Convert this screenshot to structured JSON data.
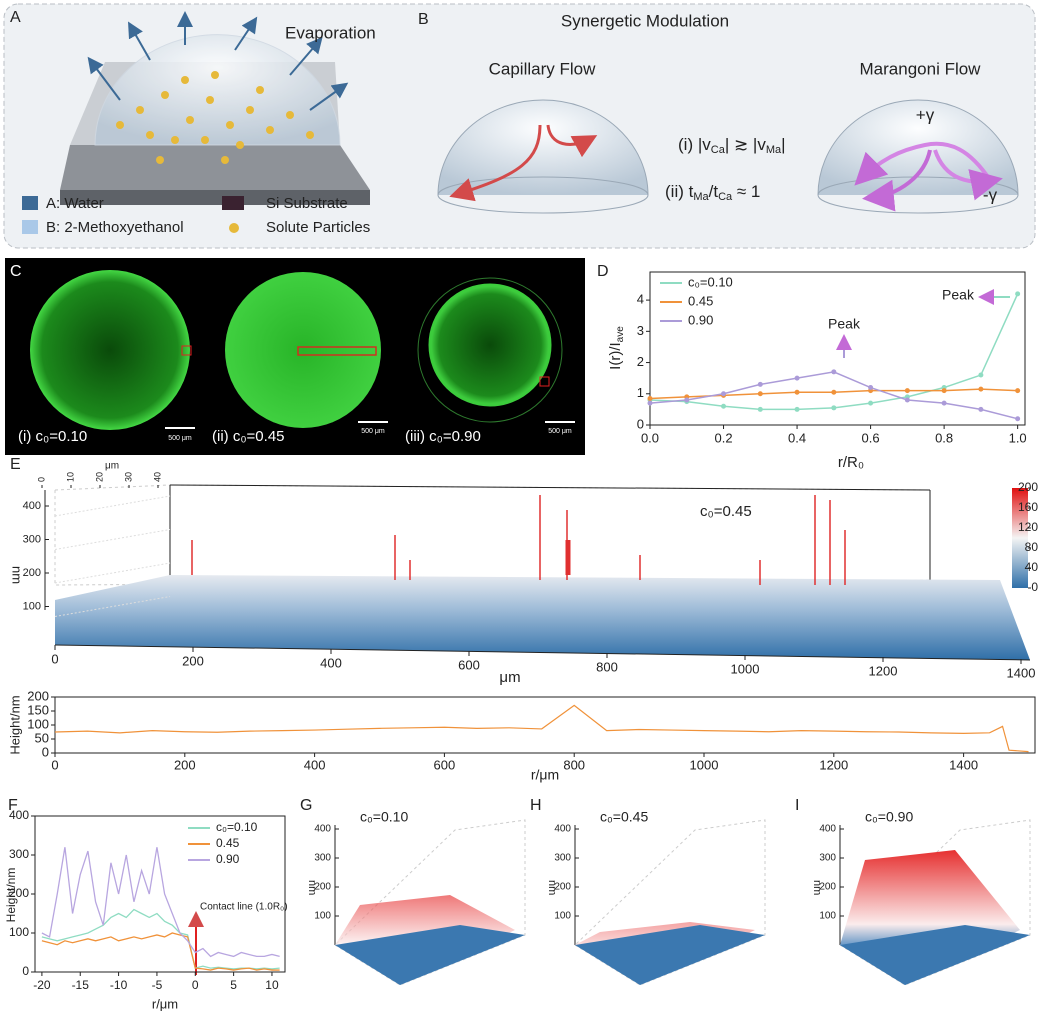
{
  "panels": {
    "A": {
      "label": "A",
      "evaporation": "Evaporation",
      "legend": [
        "A: Water",
        "B: 2-Methoxyethanol",
        "Si Substrate",
        "Solute Particles"
      ]
    },
    "B": {
      "label": "B",
      "title": "Synergetic Modulation",
      "capillary": "Capillary Flow",
      "marangoni": "Marangoni Flow",
      "cond1": [
        "(i) |v",
        "Ca",
        "| ≳ |v",
        "Ma",
        "|"
      ],
      "cond2": [
        "(ii) t",
        "Ma",
        "/t",
        "Ca",
        " ≈ 1"
      ],
      "gamma_plus": "+γ",
      "gamma_minus": "-γ"
    },
    "C": {
      "label": "C",
      "images": [
        {
          "caption": "(i) c₀=0.10",
          "scale": "500 μm"
        },
        {
          "caption": "(ii) c₀=0.45",
          "scale": "500 μm"
        },
        {
          "caption": "(iii) c₀=0.90",
          "scale": "500 μm"
        }
      ]
    },
    "D": {
      "label": "D",
      "annotations": [
        "Peak",
        "Peak"
      ],
      "chart_data": {
        "type": "line",
        "xlabel": "r/R₀",
        "ylabel": [
          "I(r)/I",
          "ave"
        ],
        "x": [
          0,
          0.1,
          0.2,
          0.3,
          0.4,
          0.5,
          0.6,
          0.7,
          0.8,
          0.9,
          1.0
        ],
        "xlim": [
          0,
          1.02
        ],
        "ylim": [
          0,
          4.9
        ],
        "xticks": [
          {
            "value": 0,
            "label": "0.0"
          },
          0.2,
          0.4,
          0.6,
          0.8,
          {
            "value": 1,
            "label": "1.0"
          }
        ],
        "yticks": [
          0,
          1,
          2,
          3,
          4
        ],
        "series": [
          {
            "name": "c₀=0.10",
            "color": "#8fdcc2",
            "values": [
              0.8,
              0.75,
              0.6,
              0.5,
              0.5,
              0.55,
              0.7,
              0.9,
              1.2,
              1.6,
              4.2
            ]
          },
          {
            "name": "0.45",
            "color": "#f0923a",
            "values": [
              0.85,
              0.9,
              0.95,
              1.0,
              1.05,
              1.05,
              1.1,
              1.1,
              1.1,
              1.15,
              1.1
            ]
          },
          {
            "name": "0.90",
            "color": "#ab9bd8",
            "values": [
              0.7,
              0.8,
              1.0,
              1.3,
              1.5,
              1.7,
              1.2,
              0.8,
              0.7,
              0.5,
              0.2
            ]
          }
        ]
      }
    },
    "E": {
      "label": "E",
      "surface": {
        "annotation": "c₀=0.45",
        "xlabel": "μm",
        "zlabel": "nm",
        "ylabel": "μm",
        "xticks": [
          0,
          200,
          400,
          600,
          800,
          1000,
          1200,
          1400
        ],
        "zticks": [
          100,
          200,
          300,
          400
        ],
        "yticks": [
          0,
          10,
          20,
          30,
          40
        ],
        "colorbar_ticks": [
          0,
          40,
          80,
          120,
          160,
          200
        ]
      },
      "chart_data": {
        "type": "line",
        "xlabel": "r/μm",
        "ylabel": "Height/nm",
        "x": [
          0,
          50,
          100,
          150,
          200,
          250,
          300,
          350,
          400,
          450,
          500,
          550,
          600,
          650,
          700,
          750,
          800,
          850,
          900,
          950,
          1000,
          1050,
          1100,
          1150,
          1200,
          1250,
          1300,
          1350,
          1400,
          1440,
          1460,
          1470,
          1500
        ],
        "xlim": [
          0,
          1510
        ],
        "ylim": [
          0,
          200
        ],
        "xticks": [
          0,
          200,
          400,
          600,
          800,
          1000,
          1200,
          1400
        ],
        "yticks": [
          0,
          50,
          100,
          150,
          200
        ],
        "series": [
          {
            "name": "Height",
            "color": "#f0923a",
            "values": [
              75,
              78,
              72,
              80,
              76,
              74,
              78,
              80,
              82,
              85,
              88,
              90,
              92,
              88,
              90,
              86,
              170,
              80,
              84,
              82,
              80,
              78,
              76,
              80,
              78,
              76,
              75,
              72,
              70,
              72,
              95,
              10,
              5
            ]
          }
        ]
      }
    },
    "F": {
      "label": "F",
      "annotation": "Contact line (1.0R₀)",
      "chart_data": {
        "type": "line",
        "xlabel": "r/μm",
        "ylabel": "Height/nm",
        "x": [
          -20,
          -19,
          -18,
          -17,
          -16,
          -15,
          -14,
          -13,
          -12,
          -11,
          -10,
          -9,
          -8,
          -7,
          -6,
          -5,
          -4,
          -3,
          -2,
          -1,
          0,
          1,
          2,
          3,
          4,
          5,
          6,
          7,
          8,
          9,
          10,
          11
        ],
        "xlim": [
          -20.9,
          11.7
        ],
        "ylim": [
          0,
          400
        ],
        "xticks": [
          -20,
          -15,
          -10,
          -5,
          0,
          5,
          10
        ],
        "yticks": [
          0,
          100,
          200,
          300,
          400
        ],
        "series": [
          {
            "name": "c₀=0.10",
            "color": "#8fdcc2",
            "values": [
              90,
              85,
              80,
              85,
              90,
              95,
              100,
              110,
              120,
              140,
              150,
              140,
              160,
              150,
              140,
              150,
              130,
              120,
              100,
              95,
              10,
              15,
              10,
              12,
              10,
              8,
              10,
              10,
              8,
              10,
              8,
              10
            ]
          },
          {
            "name": "0.45",
            "color": "#f0923a",
            "values": [
              80,
              75,
              70,
              80,
              75,
              80,
              85,
              80,
              85,
              90,
              80,
              85,
              90,
              85,
              90,
              95,
              90,
              100,
              95,
              90,
              10,
              8,
              5,
              10,
              8,
              5,
              8,
              10,
              5,
              8,
              5,
              5
            ]
          },
          {
            "name": "0.90",
            "color": "#b8a6e0",
            "values": [
              100,
              90,
              200,
              320,
              150,
              250,
              310,
              180,
              120,
              280,
              200,
              300,
              180,
              260,
              200,
              320,
              200,
              150,
              100,
              80,
              50,
              60,
              40,
              50,
              45,
              40,
              50,
              45,
              40,
              40,
              45,
              40
            ]
          }
        ]
      }
    },
    "G": {
      "label": "G",
      "title": "c₀=0.10",
      "zlabel": "nm",
      "zticks": [
        100,
        200,
        300,
        400
      ]
    },
    "H": {
      "label": "H",
      "title": "c₀=0.45",
      "zlabel": "nm",
      "zticks": [
        100,
        200,
        300,
        400
      ]
    },
    "I": {
      "label": "I",
      "title": "c₀=0.90",
      "zlabel": "nm",
      "zticks": [
        100,
        200,
        300,
        400
      ]
    }
  }
}
